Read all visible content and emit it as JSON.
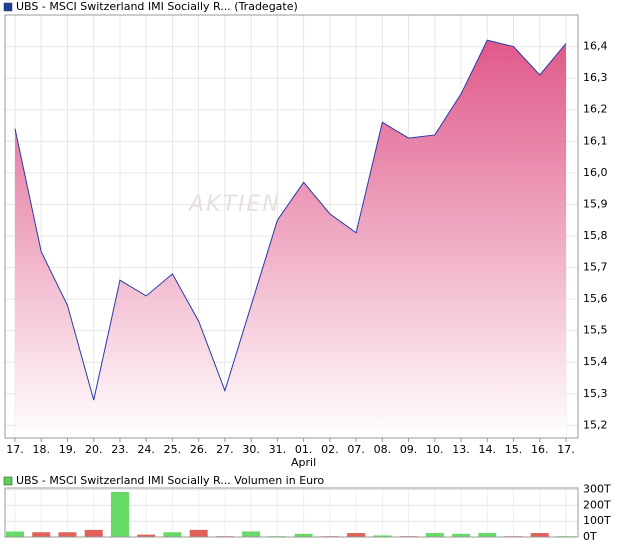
{
  "chart_data": [
    {
      "type": "area",
      "legend_color": "#1f3f9f",
      "series": [
        {
          "name": "UBS - MSCI Switzerland IMI Socially R... (Tradegate)",
          "color": "#2a3aa8",
          "values": [
            16.14,
            15.75,
            15.58,
            15.28,
            15.66,
            15.61,
            15.68,
            15.53,
            15.31,
            15.58,
            15.85,
            15.97,
            15.87,
            15.81,
            16.16,
            16.11,
            16.12,
            16.25,
            16.42,
            16.4,
            16.31,
            16.41
          ]
        }
      ],
      "categories": [
        "17.",
        "18.",
        "19.",
        "20.",
        "23.",
        "24.",
        "25.",
        "26.",
        "27.",
        "30.",
        "31.",
        "01.",
        "02.",
        "07.",
        "08.",
        "09.",
        "10.",
        "13.",
        "14.",
        "15.",
        "16.",
        "17."
      ],
      "month_labels": [
        null,
        null,
        null,
        null,
        null,
        null,
        null,
        null,
        null,
        null,
        null,
        "April",
        null,
        null,
        null,
        null,
        null,
        null,
        null,
        null,
        null,
        null
      ],
      "watermark": "AKTIEN",
      "fill_top": "#e0588a",
      "ylim": [
        15.16,
        16.5
      ],
      "yticks": [
        {
          "value": 15.2,
          "label": "15,2"
        },
        {
          "value": 15.3,
          "label": "15,3"
        },
        {
          "value": 15.4,
          "label": "15,4"
        },
        {
          "value": 15.5,
          "label": "15,5"
        },
        {
          "value": 15.6,
          "label": "15,6"
        },
        {
          "value": 15.7,
          "label": "15,7"
        },
        {
          "value": 15.8,
          "label": "15,8"
        },
        {
          "value": 15.9,
          "label": "15,9"
        },
        {
          "value": 16.0,
          "label": "16,0"
        },
        {
          "value": 16.1,
          "label": "16,1"
        },
        {
          "value": 16.2,
          "label": "16,2"
        },
        {
          "value": 16.3,
          "label": "16,3"
        },
        {
          "value": 16.4,
          "label": "16,4"
        }
      ],
      "grid": true
    },
    {
      "type": "bar",
      "legend_color": "#5ccf5c",
      "series": [
        {
          "name": "UBS - MSCI Switzerland IMI Socially R... Volumen in Euro",
          "values": [
            35,
            30,
            30,
            45,
            285,
            15,
            30,
            45,
            5,
            35,
            5,
            20,
            5,
            25,
            10,
            5,
            25,
            20,
            25,
            5,
            25,
            5
          ],
          "colors": [
            "#66d966",
            "#e0605a",
            "#e0605a",
            "#e0605a",
            "#66d966",
            "#e0605a",
            "#66d966",
            "#e0605a",
            "#e0605a",
            "#66d966",
            "#66d966",
            "#66d966",
            "#e0605a",
            "#e0605a",
            "#66d966",
            "#e0605a",
            "#66d966",
            "#66d966",
            "#66d966",
            "#e0605a",
            "#e0605a",
            "#66d966"
          ]
        }
      ],
      "ylim": [
        0,
        310
      ],
      "yticks": [
        {
          "value": 0,
          "label": "0T"
        },
        {
          "value": 100,
          "label": "100T"
        },
        {
          "value": 200,
          "label": "200T"
        },
        {
          "value": 300,
          "label": "300T"
        }
      ],
      "grid": true
    }
  ]
}
